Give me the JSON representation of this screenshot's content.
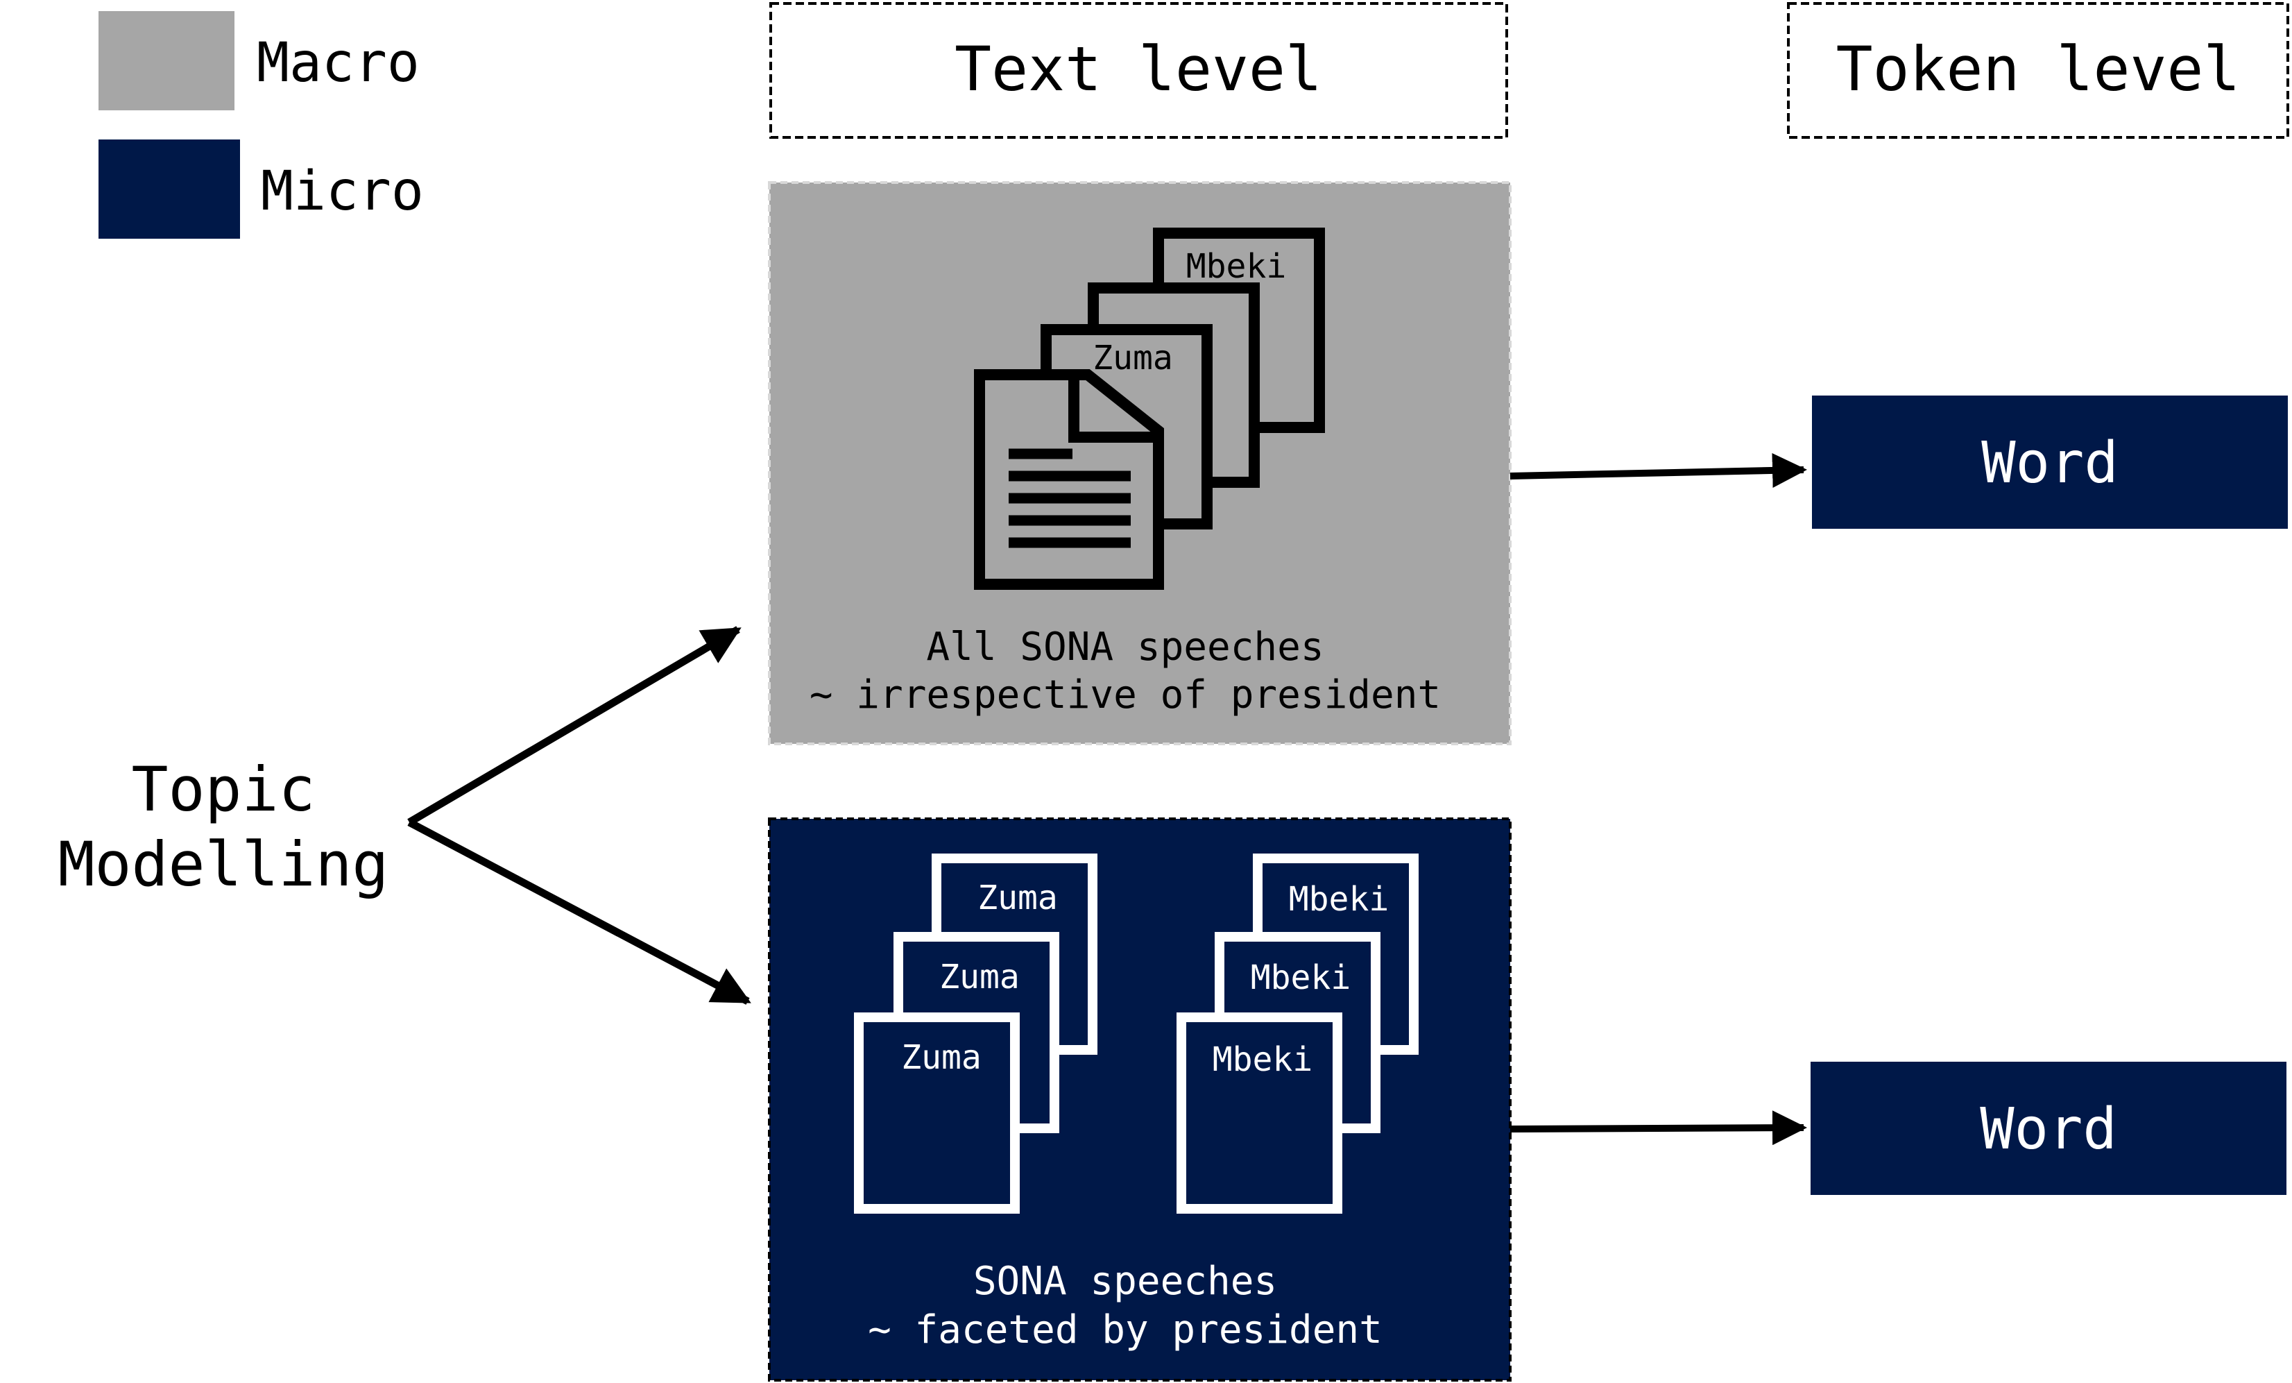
{
  "colors": {
    "macro": "#a6a6a6",
    "micro": "#001848",
    "ink": "#000000",
    "paper_on_dark": "#ffffff",
    "background": "#ffffff"
  },
  "legend": {
    "macro_label": "Macro",
    "micro_label": "Micro"
  },
  "headers": {
    "text_level": "Text level",
    "token_level": "Token level"
  },
  "root_label": {
    "line1": "Topic",
    "line2": "Modelling"
  },
  "macro_box": {
    "doc_labels": [
      "Mbeki",
      "Zuma"
    ],
    "caption_line1": "All SONA speeches",
    "caption_line2": "~ irrespective of president"
  },
  "micro_box": {
    "zuma_docs": [
      "Zuma",
      "Zuma",
      "Zuma"
    ],
    "mbeki_docs": [
      "Mbeki",
      "Mbeki",
      "Mbeki"
    ],
    "caption_line1": "SONA speeches",
    "caption_line2": "~ faceted by president"
  },
  "token_boxes": {
    "macro_word": "Word",
    "micro_word": "Word"
  },
  "icons": {
    "document_stack": "document-stack-icon",
    "arrow": "arrow-icon"
  }
}
